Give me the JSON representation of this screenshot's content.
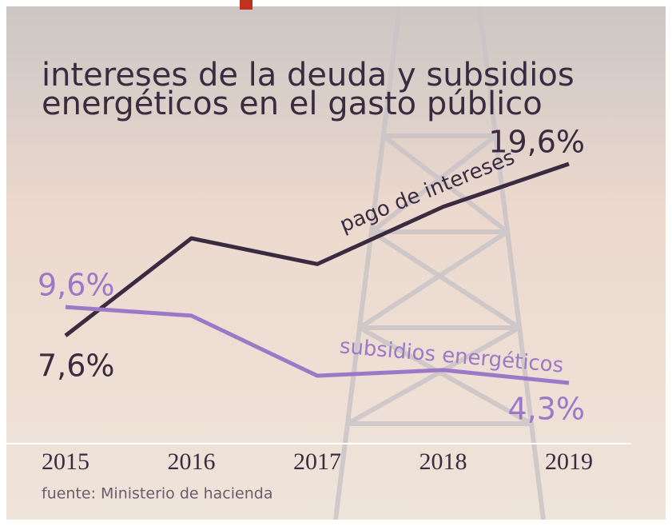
{
  "chart_data": {
    "type": "line",
    "title": [
      "intereses de la deuda y subsidios",
      "energéticos en el gasto público"
    ],
    "source": "fuente: Ministerio de hacienda",
    "categories": [
      "2015",
      "2016",
      "2017",
      "2018",
      "2019"
    ],
    "series": [
      {
        "name": "pago de intereses",
        "color": "#3b2b40",
        "values": [
          7.6,
          14.4,
          12.6,
          16.6,
          19.6
        ],
        "value_labels": [
          "7,6%",
          null,
          null,
          null,
          "19,6%"
        ]
      },
      {
        "name": "subsidios energéticos",
        "color": "#9b79c6",
        "values": [
          9.6,
          9.0,
          4.8,
          5.2,
          4.3
        ],
        "value_labels": [
          "9,6%",
          null,
          null,
          null,
          "4,3%"
        ]
      }
    ]
  }
}
